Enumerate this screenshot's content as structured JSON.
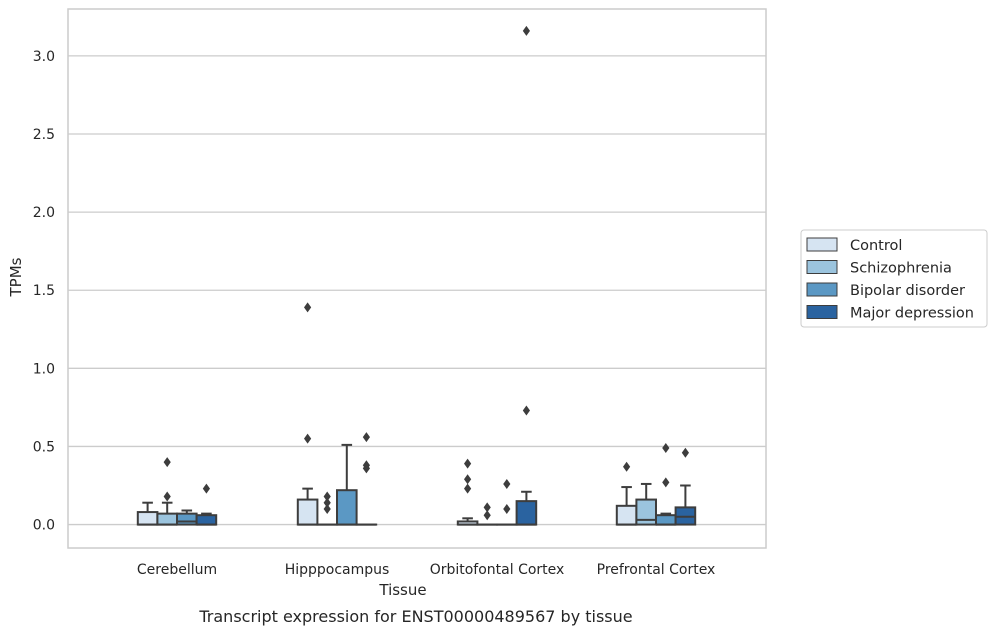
{
  "chart_data": {
    "type": "box",
    "caption": "Transcript expression for ENST00000489567 by tissue",
    "xlabel": "Tissue",
    "ylabel": "TPMs",
    "ylim": [
      -0.15,
      3.3
    ],
    "yticks": [
      0.0,
      0.5,
      1.0,
      1.5,
      2.0,
      2.5,
      3.0
    ],
    "ytick_labels": [
      "0.0",
      "0.5",
      "1.0",
      "1.5",
      "2.0",
      "2.5",
      "3.0"
    ],
    "grid": "horizontal",
    "legend_position": "right",
    "categories": [
      "Cerebellum",
      "Hipppocampus",
      "Orbitofontal Cortex",
      "Prefrontal Cortex"
    ],
    "series": [
      {
        "name": "Control",
        "color": "#d6e4f2",
        "boxes": [
          {
            "q1": 0.0,
            "median": 0.0,
            "q3": 0.08,
            "whisker_low": 0.0,
            "whisker_high": 0.14,
            "outliers": []
          },
          {
            "q1": 0.0,
            "median": 0.0,
            "q3": 0.16,
            "whisker_low": 0.0,
            "whisker_high": 0.23,
            "outliers": [
              0.55,
              1.39
            ]
          },
          {
            "q1": 0.0,
            "median": 0.0,
            "q3": 0.02,
            "whisker_low": 0.0,
            "whisker_high": 0.04,
            "outliers": [
              0.23,
              0.29,
              0.39
            ]
          },
          {
            "q1": 0.0,
            "median": 0.0,
            "q3": 0.12,
            "whisker_low": 0.0,
            "whisker_high": 0.24,
            "outliers": [
              0.37
            ]
          }
        ]
      },
      {
        "name": "Schizophrenia",
        "color": "#9bc4de",
        "boxes": [
          {
            "q1": 0.0,
            "median": 0.0,
            "q3": 0.07,
            "whisker_low": 0.0,
            "whisker_high": 0.14,
            "outliers": [
              0.18,
              0.4
            ]
          },
          {
            "q1": 0.0,
            "median": 0.0,
            "q3": 0.0,
            "whisker_low": 0.0,
            "whisker_high": 0.0,
            "outliers": [
              0.1,
              0.14,
              0.18
            ]
          },
          {
            "q1": 0.0,
            "median": 0.0,
            "q3": 0.0,
            "whisker_low": 0.0,
            "whisker_high": 0.0,
            "outliers": [
              0.06,
              0.11
            ]
          },
          {
            "q1": 0.0,
            "median": 0.03,
            "q3": 0.16,
            "whisker_low": 0.0,
            "whisker_high": 0.26,
            "outliers": []
          }
        ]
      },
      {
        "name": "Bipolar disorder",
        "color": "#5b98c4",
        "boxes": [
          {
            "q1": 0.0,
            "median": 0.02,
            "q3": 0.07,
            "whisker_low": 0.0,
            "whisker_high": 0.09,
            "outliers": []
          },
          {
            "q1": 0.0,
            "median": 0.0,
            "q3": 0.22,
            "whisker_low": 0.0,
            "whisker_high": 0.51,
            "outliers": []
          },
          {
            "q1": 0.0,
            "median": 0.0,
            "q3": 0.0,
            "whisker_low": 0.0,
            "whisker_high": 0.0,
            "outliers": [
              0.1,
              0.26
            ]
          },
          {
            "q1": 0.0,
            "median": 0.0,
            "q3": 0.06,
            "whisker_low": 0.0,
            "whisker_high": 0.07,
            "outliers": [
              0.27,
              0.49
            ]
          }
        ]
      },
      {
        "name": "Major depression",
        "color": "#2a63a0",
        "boxes": [
          {
            "q1": 0.0,
            "median": 0.0,
            "q3": 0.06,
            "whisker_low": 0.0,
            "whisker_high": 0.07,
            "outliers": [
              0.23
            ]
          },
          {
            "q1": 0.0,
            "median": 0.0,
            "q3": 0.0,
            "whisker_low": 0.0,
            "whisker_high": 0.0,
            "outliers": [
              0.36,
              0.38,
              0.56
            ]
          },
          {
            "q1": 0.0,
            "median": 0.0,
            "q3": 0.15,
            "whisker_low": 0.0,
            "whisker_high": 0.21,
            "outliers": [
              0.73,
              3.16
            ]
          },
          {
            "q1": 0.0,
            "median": 0.05,
            "q3": 0.11,
            "whisker_low": 0.0,
            "whisker_high": 0.25,
            "outliers": [
              0.46
            ]
          }
        ]
      }
    ],
    "colors": {
      "grid": "#cccccc",
      "frame": "#cccccc",
      "box_edge": "#3d3d3d",
      "outlier": "#3d3d3d"
    }
  }
}
